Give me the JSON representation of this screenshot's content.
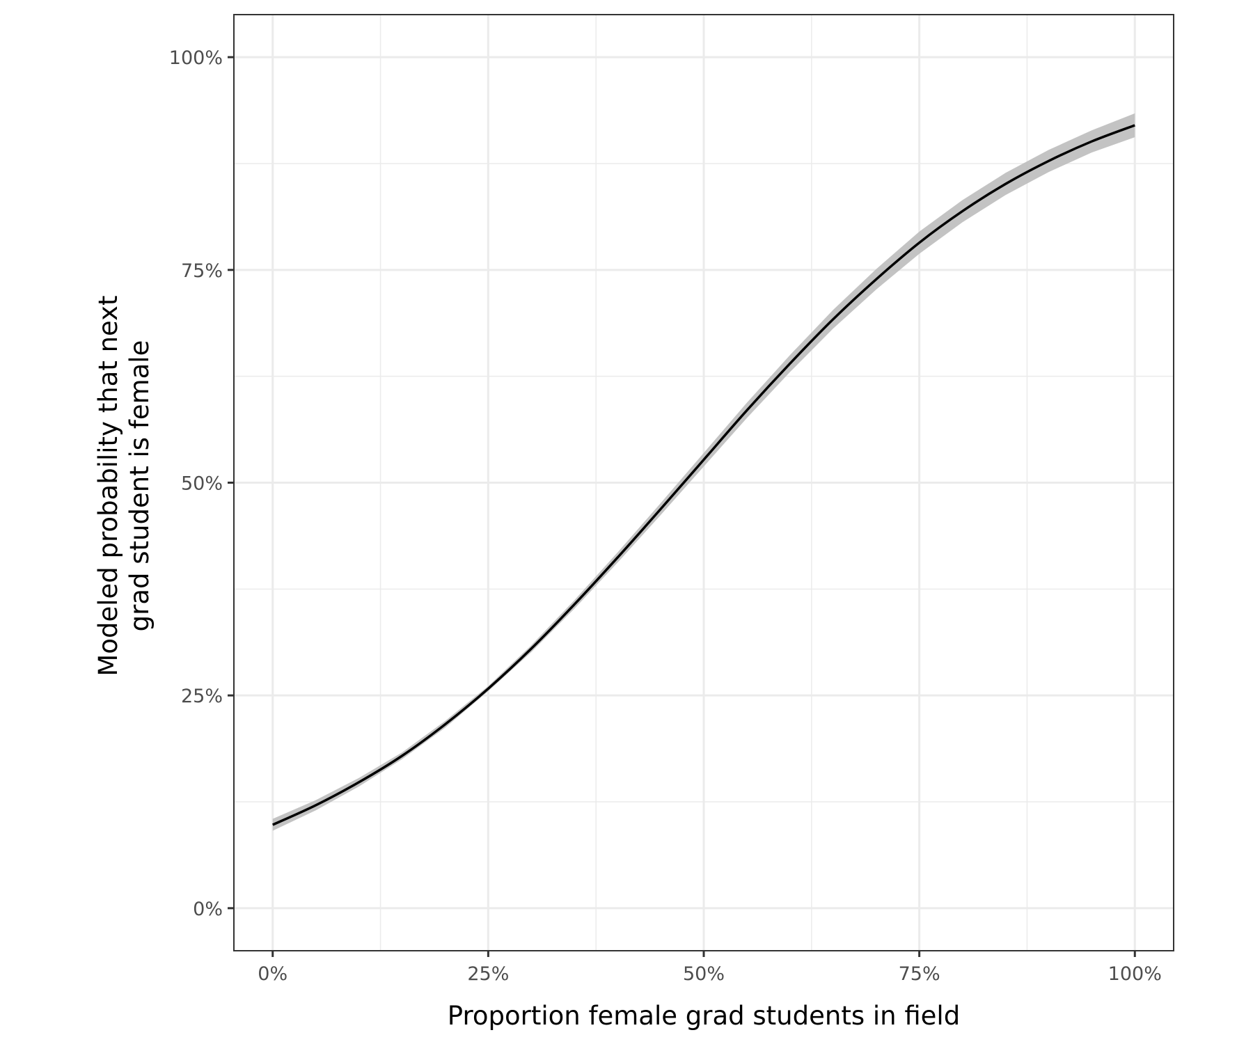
{
  "chart_data": {
    "type": "line",
    "title": "",
    "xlabel": "Proportion female grad students in field",
    "ylabel_lines": [
      "Modeled probability that next",
      "grad student is female"
    ],
    "xlim": [
      -0.045,
      1.045
    ],
    "ylim": [
      -0.05,
      1.05
    ],
    "x_ticks": [
      0,
      0.25,
      0.5,
      0.75,
      1.0
    ],
    "x_tick_labels": [
      "0%",
      "25%",
      "50%",
      "75%",
      "100%"
    ],
    "y_ticks": [
      0,
      0.25,
      0.5,
      0.75,
      1.0
    ],
    "y_tick_labels": [
      "0%",
      "25%",
      "50%",
      "75%",
      "100%"
    ],
    "grid": true,
    "series": [
      {
        "name": "fit",
        "color": "#000000",
        "band_color": "#bdbdbd",
        "x": [
          0,
          0.05,
          0.1,
          0.15,
          0.2,
          0.25,
          0.3,
          0.35,
          0.4,
          0.45,
          0.5,
          0.55,
          0.6,
          0.65,
          0.7,
          0.75,
          0.8,
          0.85,
          0.9,
          0.95,
          1.0
        ],
        "y": [
          0.098,
          0.121,
          0.148,
          0.179,
          0.216,
          0.258,
          0.305,
          0.357,
          0.412,
          0.469,
          0.527,
          0.585,
          0.64,
          0.692,
          0.739,
          0.782,
          0.819,
          0.851,
          0.878,
          0.901,
          0.92
        ],
        "lower": [
          0.091,
          0.115,
          0.143,
          0.175,
          0.212,
          0.255,
          0.301,
          0.352,
          0.406,
          0.462,
          0.519,
          0.576,
          0.63,
          0.681,
          0.727,
          0.769,
          0.806,
          0.838,
          0.865,
          0.888,
          0.906
        ],
        "upper": [
          0.105,
          0.127,
          0.153,
          0.183,
          0.22,
          0.261,
          0.309,
          0.362,
          0.418,
          0.476,
          0.535,
          0.594,
          0.65,
          0.703,
          0.751,
          0.795,
          0.832,
          0.864,
          0.891,
          0.914,
          0.934
        ]
      }
    ]
  }
}
